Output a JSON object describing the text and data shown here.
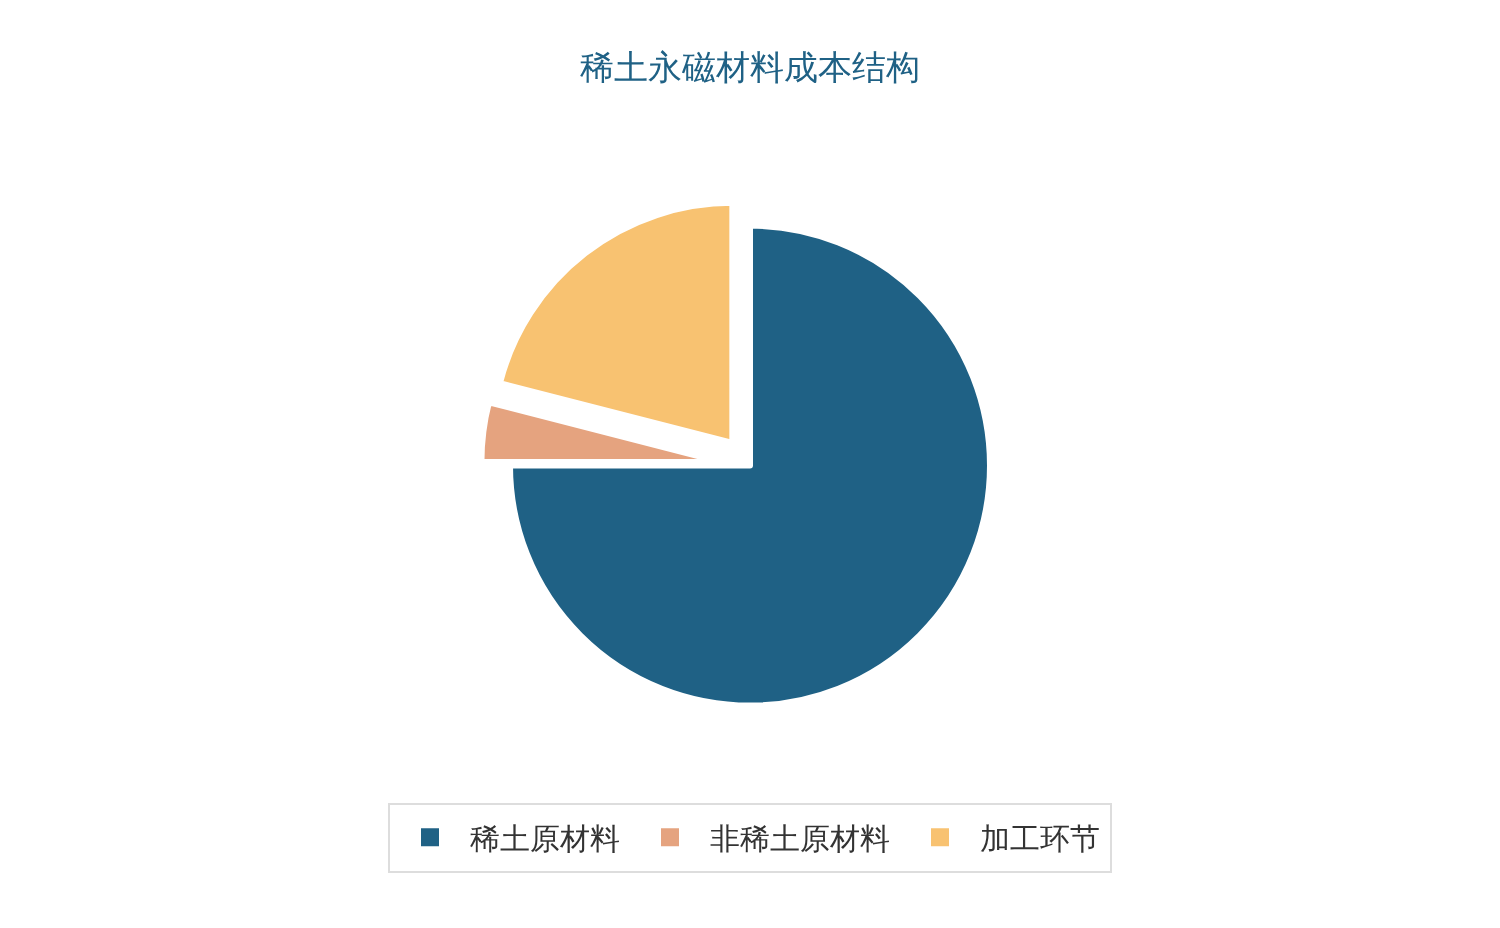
{
  "chart_data": {
    "type": "pie",
    "title": "稀土永磁材料成本结构",
    "categories": [
      "稀土原材料",
      "非稀土原材料",
      "加工环节"
    ],
    "values": [
      75,
      4,
      21
    ],
    "colors": [
      "#1f6185",
      "#e5a37f",
      "#f8c271"
    ],
    "legend": "bottom"
  }
}
